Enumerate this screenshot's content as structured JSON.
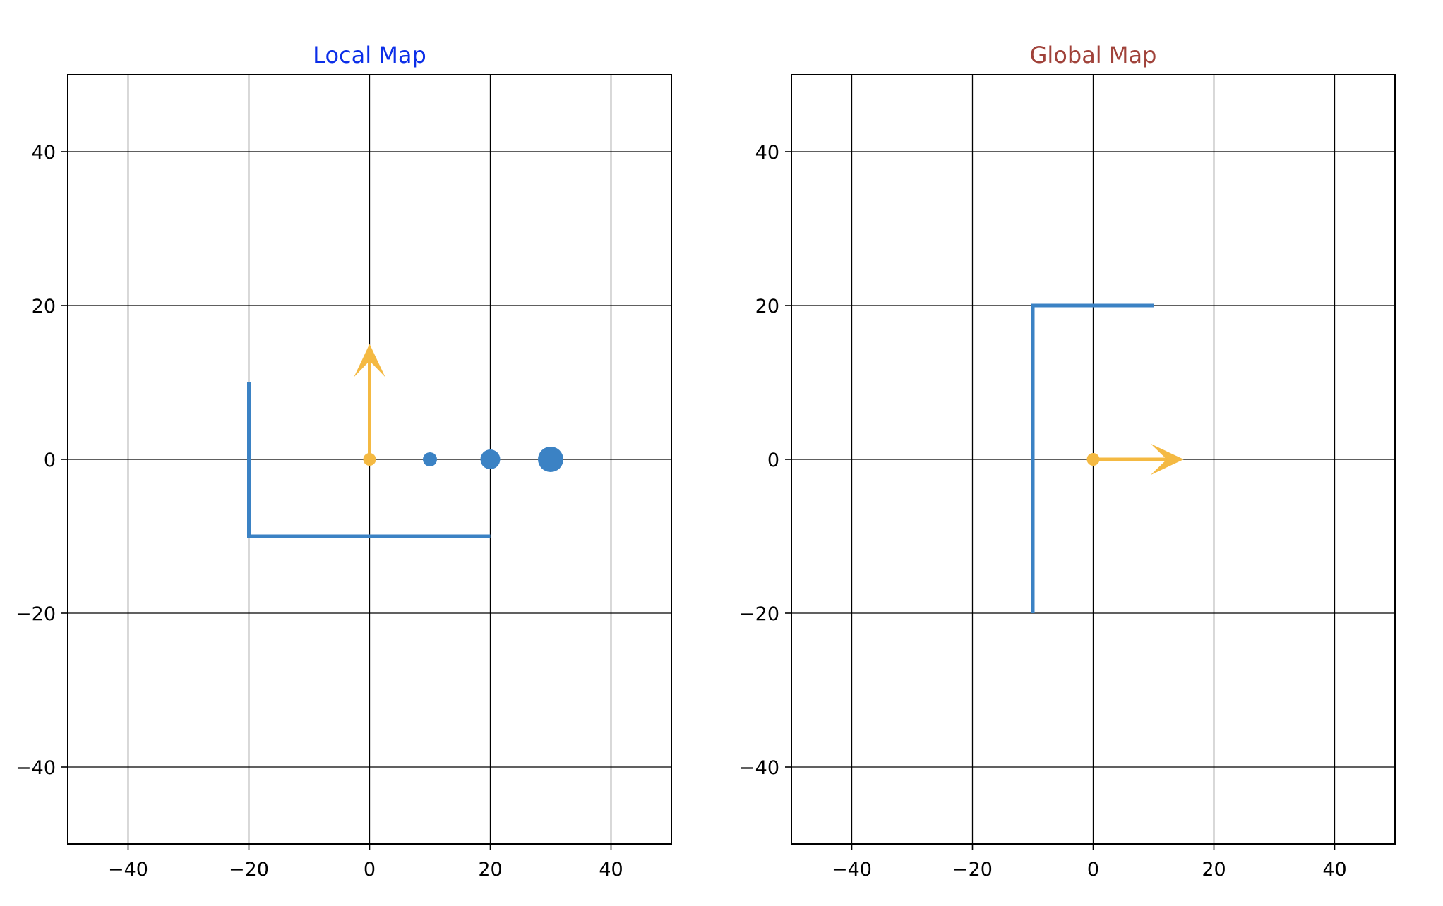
{
  "chart_data": [
    {
      "type": "scatter",
      "title": "Local Map",
      "title_color": "#0b2ee8",
      "xlim": [
        -50,
        50
      ],
      "ylim": [
        -50,
        50
      ],
      "xticks": [
        -40,
        -20,
        0,
        20,
        40
      ],
      "yticks": [
        -40,
        -20,
        0,
        20,
        40
      ],
      "grid": true,
      "wall": {
        "x": [
          -20,
          -20,
          20
        ],
        "y": [
          10,
          -10,
          -10
        ],
        "color": "#3b82c4"
      },
      "origin": {
        "x": 0,
        "y": 0,
        "color": "#f4b942"
      },
      "arrow": {
        "x": 0,
        "y": 0,
        "dx": 0,
        "dy": 15,
        "color": "#f4b942"
      },
      "points": [
        {
          "x": 10,
          "y": 0,
          "size": 1
        },
        {
          "x": 20,
          "y": 0,
          "size": 2
        },
        {
          "x": 30,
          "y": 0,
          "size": 3
        }
      ],
      "point_color": "#3b82c4"
    },
    {
      "type": "scatter",
      "title": "Global Map",
      "title_color": "#a0423a",
      "xlim": [
        -50,
        50
      ],
      "ylim": [
        -50,
        50
      ],
      "xticks": [
        -40,
        -20,
        0,
        20,
        40
      ],
      "yticks": [
        -40,
        -20,
        0,
        20,
        40
      ],
      "grid": true,
      "wall": {
        "x": [
          -10,
          -10,
          10
        ],
        "y": [
          -20,
          20,
          20
        ],
        "color": "#3b82c4"
      },
      "origin": {
        "x": 0,
        "y": 0,
        "color": "#f4b942"
      },
      "arrow": {
        "x": 0,
        "y": 0,
        "dx": 15,
        "dy": 0,
        "color": "#f4b942"
      },
      "points": [],
      "point_color": "#3b82c4"
    }
  ]
}
